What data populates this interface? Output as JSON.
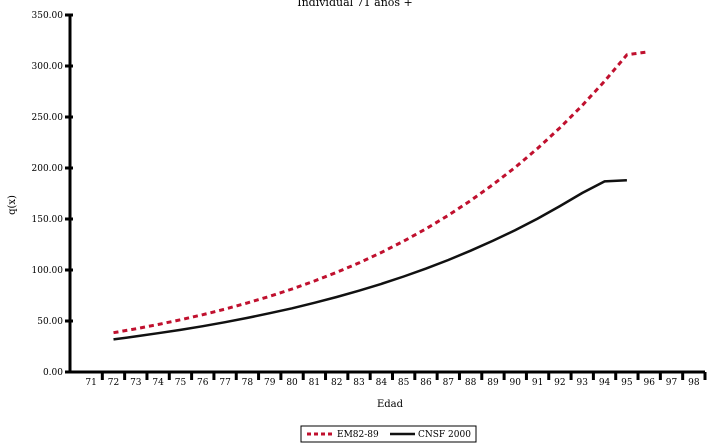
{
  "chart_data": {
    "type": "line",
    "title": "Individual 71 años +",
    "xlabel": "Edad",
    "ylabel": "q(x)",
    "x": [
      72,
      73,
      74,
      75,
      76,
      77,
      78,
      79,
      80,
      81,
      82,
      83,
      84,
      85,
      86,
      87,
      88,
      89,
      90,
      91,
      92,
      93,
      94,
      95,
      96,
      97,
      98
    ],
    "x_ticks": [
      "71",
      "72",
      "73",
      "74",
      "75",
      "76",
      "77",
      "78",
      "79",
      "80",
      "81",
      "82",
      "83",
      "84",
      "85",
      "86",
      "87",
      "88",
      "89",
      "90",
      "91",
      "92",
      "93",
      "94",
      "95",
      "96",
      "97",
      "98"
    ],
    "xlim": [
      71,
      98
    ],
    "ylim": [
      0,
      350
    ],
    "y_ticks": [
      "0.00",
      "50.00",
      "100.00",
      "150.00",
      "200.00",
      "250.00",
      "300.00",
      "350.00"
    ],
    "grid": false,
    "legend_position": "bottom-center",
    "series": [
      {
        "name": "EM82-89",
        "color": "#c0102e",
        "style": "dashed",
        "values": [
          38.5,
          42.4,
          46.6,
          51.2,
          56.2,
          61.7,
          67.7,
          74.2,
          81.4,
          89.2,
          97.7,
          107.0,
          117.2,
          128.3,
          140.4,
          153.6,
          168.0,
          183.7,
          200.7,
          219.2,
          239.4,
          261.3,
          285.1,
          311.0,
          314.0,
          0,
          0
        ]
      },
      {
        "name": "CNSF 2000",
        "color": "#111111",
        "style": "solid",
        "values": [
          32.0,
          34.9,
          38.0,
          41.3,
          44.9,
          48.8,
          53.0,
          57.6,
          62.5,
          67.8,
          73.5,
          79.7,
          86.4,
          93.6,
          101.4,
          109.8,
          118.9,
          128.6,
          139.1,
          150.4,
          162.6,
          175.5,
          186.9,
          188.0,
          0,
          0,
          0
        ]
      }
    ]
  }
}
